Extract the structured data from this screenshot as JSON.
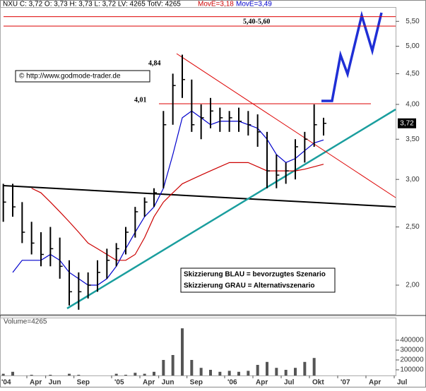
{
  "chart_data": {
    "type": "ohlc",
    "header": [
      "NXU C: 3,72 O: 3,73 H: 3,73 L: 3,72 LV: 4265 TotV: 4265",
      "MovE=3,18",
      "MovE=3,49"
    ],
    "last_price": {
      "value": 3.72,
      "label": "3,72"
    },
    "copyright": "© http://www.godmode-trader.de",
    "notes": [
      "Skizzierung BLAU = bevorzugtes Szenario",
      "Skizzierung GRAU = Alternativszenario"
    ],
    "annotations": [
      "4,84",
      "4,01",
      "5,40-5,60"
    ],
    "levels": [
      5.6,
      5.4,
      4.01
    ],
    "x": [
      "2004-01",
      "2004-02",
      "2004-03",
      "2004-04",
      "2004-05",
      "2004-06",
      "2004-07",
      "2004-08",
      "2004-09",
      "2004-10",
      "2004-11",
      "2004-12",
      "2005-01",
      "2005-02",
      "2005-03",
      "2005-04",
      "2005-05",
      "2005-06",
      "2005-07",
      "2005-08",
      "2005-09",
      "2005-10",
      "2005-11",
      "2005-12",
      "2006-01",
      "2006-02",
      "2006-03",
      "2006-04",
      "2006-05",
      "2006-06",
      "2006-07",
      "2006-08",
      "2006-09",
      "2006-10",
      "2006-11"
    ],
    "high": [
      2.95,
      2.95,
      2.75,
      2.55,
      2.45,
      2.5,
      2.4,
      2.2,
      2.1,
      2.1,
      2.2,
      2.3,
      2.35,
      2.5,
      2.7,
      2.8,
      2.9,
      3.9,
      4.5,
      4.84,
      4.4,
      4.0,
      4.1,
      3.95,
      3.9,
      3.95,
      3.9,
      3.85,
      3.6,
      3.3,
      3.2,
      3.5,
      3.6,
      4.0,
      3.8
    ],
    "low": [
      2.55,
      2.6,
      2.35,
      2.25,
      2.15,
      2.15,
      2.05,
      1.85,
      1.82,
      1.9,
      1.95,
      2.05,
      2.15,
      2.25,
      2.4,
      2.6,
      2.7,
      2.9,
      3.7,
      4.1,
      3.6,
      3.5,
      3.65,
      3.6,
      3.6,
      3.6,
      3.55,
      3.4,
      2.9,
      2.9,
      2.95,
      3.0,
      3.2,
      3.4,
      3.55
    ],
    "close": [
      2.75,
      2.7,
      2.45,
      2.35,
      2.25,
      2.3,
      2.15,
      1.95,
      1.95,
      2.0,
      2.1,
      2.2,
      2.3,
      2.45,
      2.65,
      2.75,
      2.85,
      3.7,
      4.3,
      4.4,
      3.7,
      3.8,
      3.9,
      3.8,
      3.8,
      3.75,
      3.7,
      3.6,
      3.1,
      3.05,
      3.1,
      3.4,
      3.5,
      3.7,
      3.72
    ],
    "series": [
      {
        "color": "#cc0000",
        "values": [
          null,
          null,
          null,
          2.9,
          2.85,
          2.75,
          2.65,
          2.55,
          2.45,
          2.35,
          2.3,
          2.25,
          2.2,
          2.2,
          2.25,
          2.4,
          2.6,
          2.75,
          2.85,
          2.95,
          3.0,
          3.05,
          3.1,
          3.15,
          3.2,
          3.2,
          3.2,
          3.15,
          3.1,
          3.1,
          3.1,
          3.1,
          3.12,
          3.15,
          3.18
        ]
      },
      {
        "color": "#0000cc",
        "values": [
          null,
          2.1,
          2.2,
          2.2,
          2.2,
          2.25,
          2.2,
          2.1,
          2.05,
          2.0,
          2.0,
          2.05,
          2.15,
          2.3,
          2.45,
          2.6,
          2.7,
          2.9,
          3.3,
          3.8,
          3.9,
          3.8,
          3.7,
          3.75,
          3.75,
          3.75,
          3.7,
          3.65,
          3.5,
          3.3,
          3.2,
          3.25,
          3.35,
          3.45,
          3.49
        ]
      }
    ],
    "log_y": true,
    "ylim": [
      1.79,
      5.81
    ],
    "yticks": [
      {
        "value": 2,
        "label": "2,00"
      },
      {
        "value": 2.5,
        "label": "2,50"
      },
      {
        "value": 3,
        "label": "3,00"
      },
      {
        "value": 3.5,
        "label": "3,50"
      },
      {
        "value": 4,
        "label": "4,00"
      },
      {
        "value": 4.5,
        "label": "4,50"
      },
      {
        "value": 5,
        "label": "5,00"
      },
      {
        "value": 5.5,
        "label": "5,50"
      }
    ],
    "xlim": [
      "2004-01",
      "2007-07"
    ],
    "xticks": [
      {
        "value": "2004-01",
        "label": "'04"
      },
      {
        "value": "2004-04",
        "label": "Apr"
      },
      {
        "value": "2004-06",
        "label": "Jun"
      },
      {
        "value": "2004-09",
        "label": "Sep"
      },
      {
        "value": "2005-01",
        "label": "'05"
      },
      {
        "value": "2005-04",
        "label": "Apr"
      },
      {
        "value": "2005-06",
        "label": "Jun"
      },
      {
        "value": "2005-09",
        "label": "Sep"
      },
      {
        "value": "2006-01",
        "label": "'06"
      },
      {
        "value": "2006-04",
        "label": "Apr"
      },
      {
        "value": "2006-07",
        "label": "Jul"
      },
      {
        "value": "2006-10",
        "label": "Okt"
      },
      {
        "value": "2007-01",
        "label": "'07"
      },
      {
        "value": "2007-04",
        "label": "Apr"
      },
      {
        "value": "2007-07",
        "label": "Jul"
      }
    ],
    "volume": {
      "label": "Volume=4265",
      "color": "#555555",
      "values": [
        60000,
        80000,
        40000,
        50000,
        30000,
        50000,
        40000,
        60000,
        50000,
        40000,
        30000,
        40000,
        60000,
        50000,
        70000,
        60000,
        80000,
        200000,
        250000,
        520000,
        200000,
        120000,
        100000,
        80000,
        90000,
        80000,
        90000,
        150000,
        180000,
        120000,
        100000,
        120000,
        180000,
        220000,
        4265
      ],
      "ylim": [
        0,
        600000
      ],
      "yticks": [
        100000,
        200000,
        300000,
        400000
      ]
    }
  }
}
